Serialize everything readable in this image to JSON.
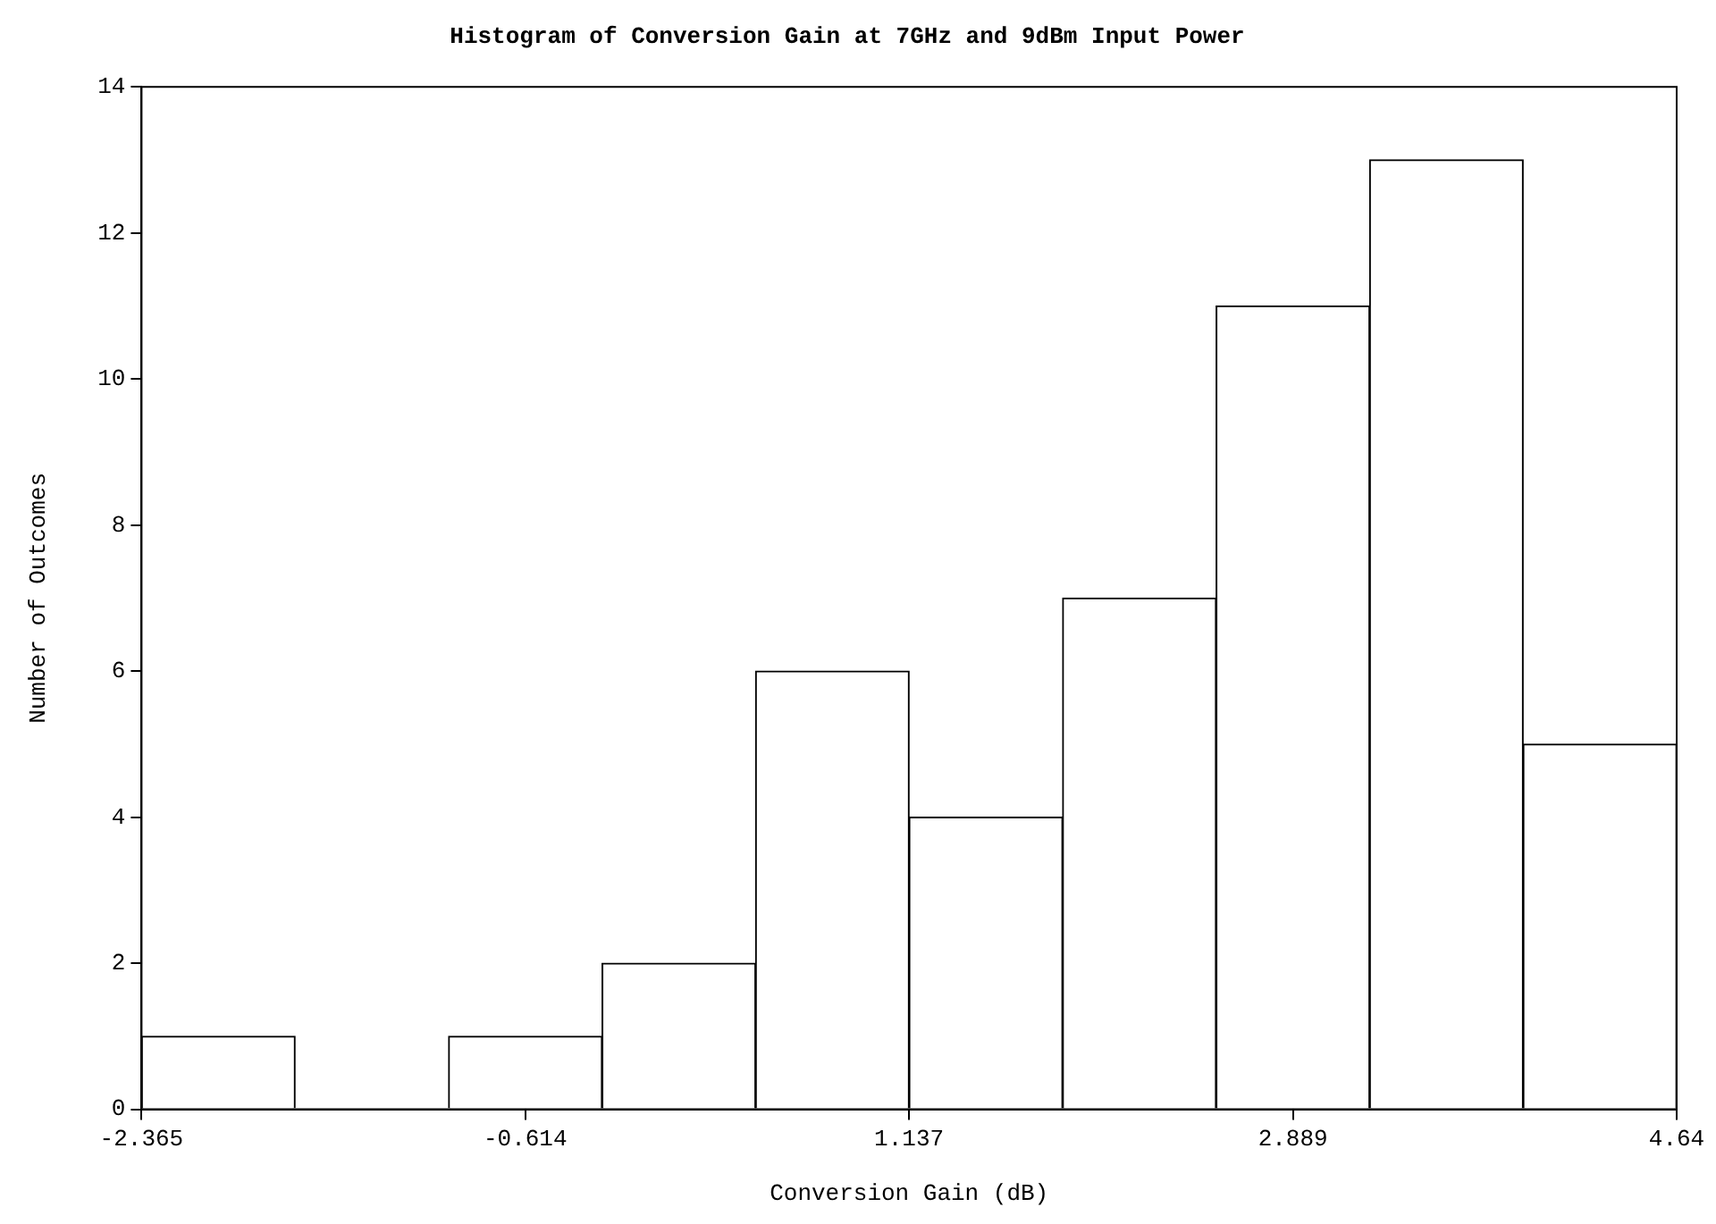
{
  "chart_data": {
    "type": "histogram",
    "title": "Histogram of Conversion Gain at 7GHz and 9dBm Input Power",
    "xlabel": "Conversion Gain (dB)",
    "ylabel": "Number of Outcomes",
    "bins": [
      -2.365,
      -1.6645,
      -0.964,
      -0.2635,
      0.437,
      1.1375,
      1.838,
      2.5385,
      3.239,
      3.9395,
      4.64
    ],
    "values": [
      1,
      0,
      1,
      2,
      6,
      4,
      7,
      11,
      13,
      5
    ],
    "color": "#ffffff",
    "xlim": [
      -2.365,
      4.64
    ],
    "xticks": [
      -2.365,
      -0.614,
      1.137,
      2.889,
      4.64
    ],
    "ylim": [
      0,
      14
    ],
    "yticks": [
      0,
      2,
      4,
      6,
      8,
      10,
      12,
      14
    ],
    "grid": false,
    "legend": false
  }
}
